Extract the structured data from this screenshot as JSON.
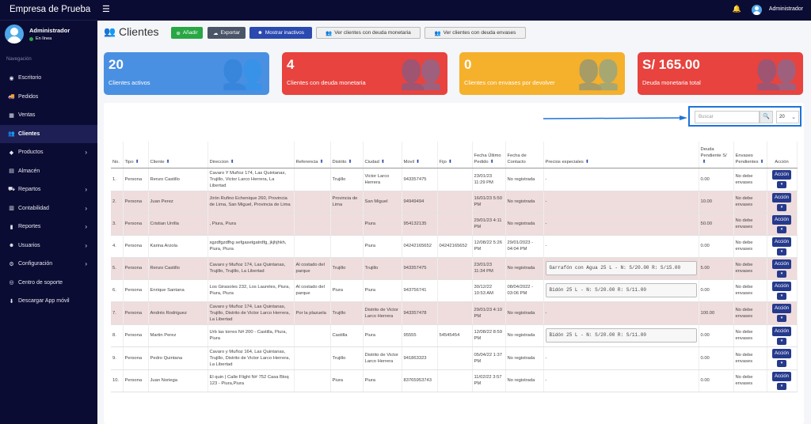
{
  "app": {
    "brand": "Empresa de Prueba",
    "user": "Administrador",
    "status": "En línea"
  },
  "sidebar": {
    "section": "Navegación",
    "items": [
      {
        "label": "Escritorio",
        "icon": "dashboard-icon",
        "glyph": "◉",
        "chev": false
      },
      {
        "label": "Pedidos",
        "icon": "truck-icon",
        "glyph": "🚚",
        "chev": false
      },
      {
        "label": "Ventas",
        "icon": "calculator-icon",
        "glyph": "▦",
        "chev": false
      },
      {
        "label": "Clientes",
        "icon": "users-icon",
        "glyph": "👥",
        "chev": false,
        "active": true
      },
      {
        "label": "Productos",
        "icon": "box-icon",
        "glyph": "◆",
        "chev": true
      },
      {
        "label": "Almacén",
        "icon": "warehouse-icon",
        "glyph": "▤",
        "chev": false
      },
      {
        "label": "Repartos",
        "icon": "delivery-icon",
        "glyph": "⛟",
        "chev": true
      },
      {
        "label": "Contabilidad",
        "icon": "ledger-icon",
        "glyph": "▥",
        "chev": true
      },
      {
        "label": "Reportes",
        "icon": "chart-icon",
        "glyph": "▮",
        "chev": true
      },
      {
        "label": "Usuarios",
        "icon": "user-icon",
        "glyph": "☻",
        "chev": true
      },
      {
        "label": "Configuración",
        "icon": "gear-icon",
        "glyph": "⚙",
        "chev": true
      },
      {
        "label": "Centro de soporte",
        "icon": "support-icon",
        "glyph": "◎",
        "chev": false
      },
      {
        "label": "Descargar App móvil",
        "icon": "download-icon",
        "glyph": "⬇",
        "chev": false
      }
    ]
  },
  "page": {
    "title": "Clientes"
  },
  "toolbar": {
    "add": "Añadir",
    "export": "Exportar",
    "inactive": "Mostrar inactivos",
    "debt_money": "Ver clientes con deuda monetaria",
    "debt_containers": "Ver clientes con deuda envases"
  },
  "cards": [
    {
      "value": "20",
      "label": "Clientes activos",
      "color": "#4a90e2"
    },
    {
      "value": "4",
      "label": "Clientes con deuda monetaria",
      "color": "#e8433e"
    },
    {
      "value": "0",
      "label": "Clientes con envases por devolver",
      "color": "#f5b02c"
    },
    {
      "value": "S/ 165.00",
      "label": "Deuda monetaria total",
      "color": "#e8433e"
    }
  ],
  "search": {
    "placeholder": "Buscar",
    "page_size": "20"
  },
  "table": {
    "headers": [
      "No.",
      "Tipo",
      "Cliente",
      "Direccion",
      "Referencia",
      "Distrito",
      "Ciudad",
      "Movil",
      "Fijo",
      "Fecha Último Pedido",
      "Fecha de Contacto",
      "Precios especiales",
      "Deuda Pendiente S/",
      "Envases Pendientes",
      "Acción"
    ],
    "action_label": "Acción",
    "rows": [
      {
        "no": "1.",
        "tipo": "Persona",
        "cliente": "Renzo Castillo",
        "dir": "Cavaro Y Muñoz 174, Las Quintanas, Trujillo, Victor Larco Herrera, La Libertad",
        "ref": "",
        "dist": "Trujillo",
        "ciudad": "Victor Larco Herrera",
        "movil": "943357475",
        "fijo": "",
        "fup": "23/01/23 11:29 PM",
        "fc": "No registrada",
        "precios": "-",
        "deuda": "0.00",
        "env": "No debe envases",
        "pink": false
      },
      {
        "no": "2.",
        "tipo": "Persona",
        "cliente": "Juan Perez",
        "dir": "Jirón Rufino Echenique 260, Provincia de Lima, San Miguel, Provincia de Lima",
        "ref": "",
        "dist": "Provincia de Lima",
        "ciudad": "San Miguel",
        "movil": "94949494",
        "fijo": "",
        "fup": "16/01/23 5:50 PM",
        "fc": "No registrada",
        "precios": "-",
        "deuda": "10.00",
        "env": "No debe envases",
        "pink": true
      },
      {
        "no": "3.",
        "tipo": "Persona",
        "cliente": "Cristian Urrilla",
        "dir": ", Piura, Piura",
        "ref": "",
        "dist": "",
        "ciudad": "Piura",
        "movil": "954132135",
        "fijo": "",
        "fup": "29/01/23 4:11 PM",
        "fc": "No registrada",
        "precios": "-",
        "deuda": "50.00",
        "env": "No debe envases",
        "pink": true
      },
      {
        "no": "4.",
        "tipo": "Persona",
        "cliente": "Karina Arzola",
        "dir": "xgzdfgzdfhg sefgasetgatrdfg, jkjhjhkh, Piura, Piura",
        "ref": "",
        "dist": "",
        "ciudad": "Piura",
        "movil": "04242165652",
        "fijo": "04242165652",
        "fup": "12/08/22 5:26 PM",
        "fc": "29/01/2023 - 04:04 PM",
        "precios": "-",
        "deuda": "0.00",
        "env": "No debe envases",
        "pink": false
      },
      {
        "no": "5.",
        "tipo": "Persona",
        "cliente": "Renzo Castillo",
        "dir": "Cavaro y Muñoz 174, Las Quintanas, Trujillo, Trujillo, La Libertad",
        "ref": "Al costado del parque",
        "dist": "Trujillo",
        "ciudad": "Trujillo",
        "movil": "943357475",
        "fijo": "",
        "fup": "23/01/23 11:34 PM",
        "fc": "No registrada",
        "precios": "Garrafón con Agua 25 L -  N: S/20.00 R: S/15.00",
        "deuda": "5.00",
        "env": "No debe envases",
        "pink": true
      },
      {
        "no": "6.",
        "tipo": "Persona",
        "cliente": "Enrique Santana",
        "dir": "Los Girasoles 232, Los Laureles, Piura, Piura, Piura",
        "ref": "Al costado del parque",
        "dist": "Piura",
        "ciudad": "Piura",
        "movil": "943756741",
        "fijo": "",
        "fup": "30/12/22 10:53 AM",
        "fc": "08/04/2022 - 03:06 PM",
        "precios": "Bidón 25 L -  N: S/20.00 R: S/11.00",
        "deuda": "0.00",
        "env": "No debe envases",
        "pink": false
      },
      {
        "no": "7.",
        "tipo": "Persona",
        "cliente": "Andrés Rodriguez",
        "dir": "Cavaro y Muñoz 174, Las Quintanas, Trujillo, Distrito de Victor Larco Herrera, La Libertad",
        "ref": "Por la plazuela",
        "dist": "Trujillo",
        "ciudad": "Distrito de Victor Larco Herrera",
        "movil": "943357478",
        "fijo": "",
        "fup": "29/01/23 4:10 PM",
        "fc": "No registrada",
        "precios": "-",
        "deuda": "100.00",
        "env": "No debe envases",
        "pink": true
      },
      {
        "no": "8.",
        "tipo": "Persona",
        "cliente": "Martin Perez",
        "dir": "Urb las torres N# 200 - Castilla, Piura, Piura",
        "ref": "",
        "dist": "Castilla",
        "ciudad": "Piura",
        "movil": "95555",
        "fijo": "54545454",
        "fup": "12/08/22 8:59 PM",
        "fc": "No registrada",
        "precios": "Bidón 25 L -  N: S/20.00 R: S/11.00",
        "deuda": "0.00",
        "env": "No debe envases",
        "pink": false
      },
      {
        "no": "9.",
        "tipo": "Persona",
        "cliente": "Pedro Quintana",
        "dir": "Cavaro y Muñoz 164, Las Quintanas, Trujillo, Distrito de Victor Larco Herrera, La Libertad",
        "ref": "",
        "dist": "Trujillo",
        "ciudad": "Distrito de Victor Larco Herrera",
        "movil": "941863323",
        "fijo": "",
        "fup": "05/04/22 1:37 PM",
        "fc": "No registrada",
        "precios": "-",
        "deuda": "0.00",
        "env": "No debe envases",
        "pink": false
      },
      {
        "no": "10.",
        "tipo": "Persona",
        "cliente": "Juan Noriega",
        "dir": "El quin | Calle Flight N# 752 Casa Bloq 123 - Piura,Piura",
        "ref": "",
        "dist": "Piura",
        "ciudad": "Piura",
        "movil": "83765953743",
        "fijo": "",
        "fup": "11/02/22 3:57 PM",
        "fc": "No registrada",
        "precios": "-",
        "deuda": "0.00",
        "env": "No debe envases",
        "pink": false
      }
    ]
  }
}
